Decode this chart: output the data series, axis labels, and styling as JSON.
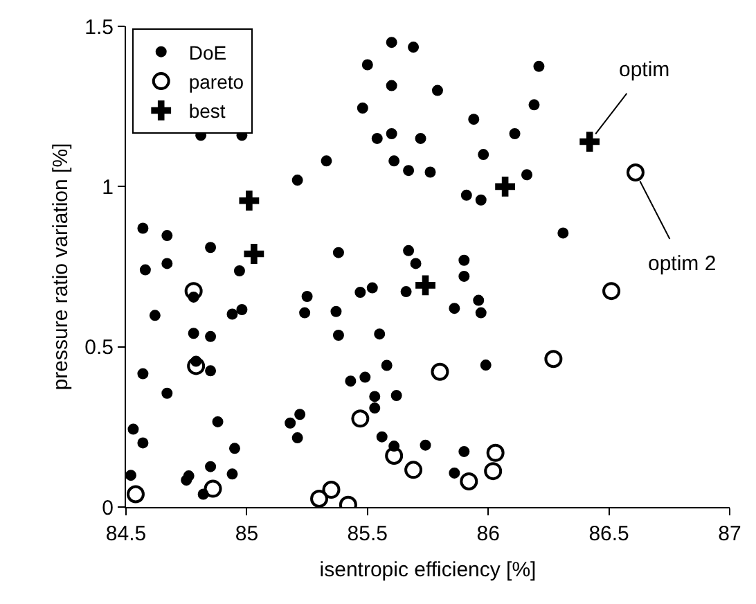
{
  "chart_data": {
    "type": "scatter",
    "xlabel": "isentropic efficiency [%]",
    "ylabel": "pressure ratio variation [%]",
    "xlim": [
      84.5,
      87
    ],
    "xticks": [
      84.5,
      85,
      85.5,
      86,
      86.5,
      87
    ],
    "ylim": [
      0,
      1.5
    ],
    "yticks": [
      0,
      0.5,
      1,
      1.5
    ],
    "legend": "top left",
    "series": [
      {
        "name": "DoE",
        "color": "#000000",
        "marker": "circle",
        "x": [
          84.81,
          84.98,
          85.21,
          84.57,
          84.67,
          84.85,
          84.58,
          84.67,
          84.97,
          85.6,
          85.69,
          85.5,
          86.21,
          85.6,
          85.79,
          85.48,
          86.19,
          85.94,
          85.54,
          85.6,
          85.72,
          86.11,
          85.33,
          85.61,
          85.67,
          85.76,
          85.98,
          85.91,
          85.97,
          86.16,
          85.38,
          85.67,
          85.7,
          85.9,
          85.9,
          86.31,
          84.78,
          84.62,
          84.94,
          84.98,
          85.25,
          85.24,
          84.78,
          84.85,
          84.79,
          84.85,
          84.57,
          84.67,
          84.88,
          85.18,
          85.22,
          85.21,
          84.53,
          84.57,
          84.95,
          84.85,
          84.52,
          84.76,
          84.75,
          84.94,
          84.82,
          85.47,
          85.52,
          85.66,
          85.86,
          85.96,
          85.97,
          85.37,
          85.38,
          85.55,
          85.58,
          85.99,
          85.43,
          85.49,
          85.53,
          85.62,
          85.53,
          85.56,
          85.61,
          85.74,
          85.9,
          85.86
        ],
        "values": [
          1.16,
          1.16,
          1.02,
          0.87,
          0.847,
          0.81,
          0.74,
          0.76,
          0.737,
          1.45,
          1.435,
          1.38,
          1.375,
          1.315,
          1.3,
          1.245,
          1.255,
          1.21,
          1.15,
          1.165,
          1.15,
          1.165,
          1.08,
          1.08,
          1.05,
          1.045,
          1.1,
          0.973,
          0.958,
          1.037,
          0.794,
          0.8,
          0.76,
          0.77,
          0.72,
          0.855,
          0.655,
          0.598,
          0.602,
          0.616,
          0.657,
          0.606,
          0.542,
          0.532,
          0.455,
          0.425,
          0.416,
          0.355,
          0.266,
          0.262,
          0.289,
          0.216,
          0.243,
          0.2,
          0.183,
          0.126,
          0.099,
          0.097,
          0.084,
          0.103,
          0.04,
          0.67,
          0.684,
          0.672,
          0.62,
          0.645,
          0.606,
          0.61,
          0.536,
          0.54,
          0.442,
          0.443,
          0.393,
          0.405,
          0.345,
          0.348,
          0.309,
          0.219,
          0.19,
          0.193,
          0.173,
          0.106
        ]
      },
      {
        "name": "pareto",
        "color": "#000000",
        "marker": "circle-open",
        "x": [
          84.78,
          84.79,
          84.86,
          84.54,
          85.8,
          86.27,
          85.47,
          85.61,
          85.69,
          85.92,
          86.03,
          86.02,
          85.35,
          85.3,
          85.42,
          86.51,
          86.61
        ],
        "values": [
          0.674,
          0.44,
          0.057,
          0.04,
          0.422,
          0.462,
          0.276,
          0.16,
          0.116,
          0.08,
          0.169,
          0.112,
          0.054,
          0.026,
          0.007,
          0.674,
          1.044
        ]
      },
      {
        "name": "best",
        "color": "#000000",
        "marker": "cross",
        "x": [
          85.01,
          85.03,
          86.07,
          85.74,
          86.42
        ],
        "values": [
          0.956,
          0.79,
          1.0,
          0.692,
          1.14
        ]
      }
    ],
    "annotations": [
      {
        "text": "optim",
        "x": 86.42,
        "y": 1.14
      },
      {
        "text": "optim 2",
        "x": 86.61,
        "y": 1.044
      }
    ]
  }
}
